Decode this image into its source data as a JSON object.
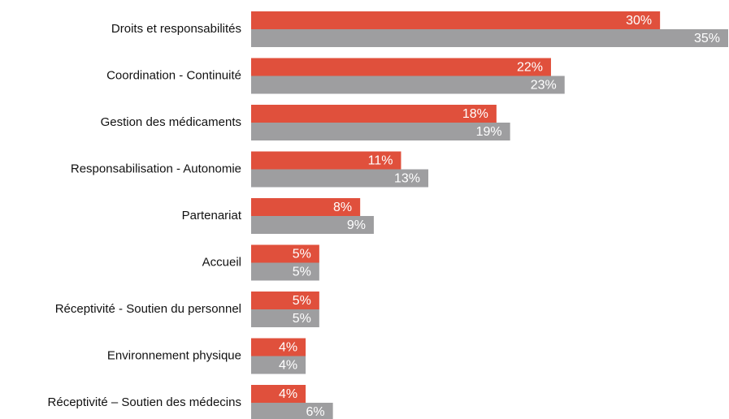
{
  "chart_data": {
    "type": "bar",
    "orientation": "horizontal",
    "categories": [
      "Droits et responsabilités",
      "Coordination - Continuité",
      "Gestion des médicaments",
      "Responsabilisation - Autonomie",
      "Partenariat",
      "Accueil",
      "Réceptivité - Soutien du personnel",
      "Environnement physique",
      "Réceptivité – Soutien des médecins"
    ],
    "series": [
      {
        "color": "#e0503c",
        "values": [
          30,
          22,
          18,
          11,
          8,
          5,
          5,
          4,
          4
        ],
        "value_labels": [
          "30%",
          "22%",
          "18%",
          "11%",
          "8%",
          "5%",
          "5%",
          "4%",
          "4%"
        ]
      },
      {
        "color": "#9e9ea0",
        "values": [
          35,
          23,
          19,
          13,
          9,
          5,
          5,
          4,
          6
        ],
        "value_labels": [
          "35%",
          "23%",
          "19%",
          "13%",
          "9%",
          "5%",
          "5%",
          "4%",
          "6%"
        ]
      }
    ]
  }
}
